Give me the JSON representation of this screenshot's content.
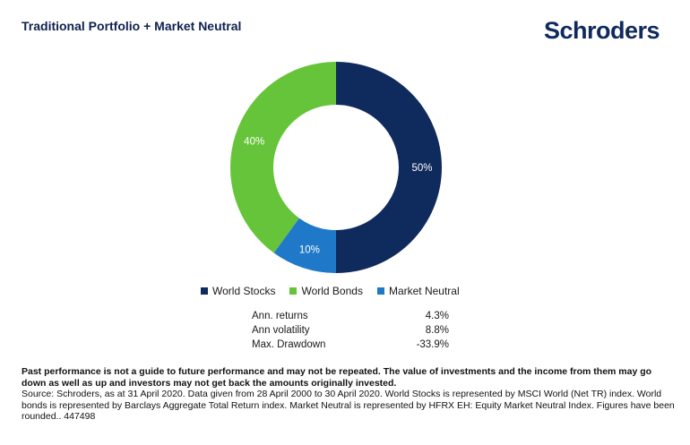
{
  "header": {
    "title": "Traditional Portfolio + Market Neutral",
    "logo_text": "Schroders"
  },
  "chart_data": {
    "type": "pie",
    "donut": true,
    "categories": [
      "World Stocks",
      "Market Neutral",
      "World Bonds"
    ],
    "values": [
      50,
      10,
      40
    ],
    "value_labels": [
      "50%",
      "10%",
      "40%"
    ],
    "colors": [
      "#0f2a5c",
      "#1f78c8",
      "#66c43a"
    ],
    "legend_position": "bottom"
  },
  "legend": [
    {
      "label": "World Stocks",
      "color": "#0f2a5c"
    },
    {
      "label": "World Bonds",
      "color": "#66c43a"
    },
    {
      "label": "Market Neutral",
      "color": "#1f78c8"
    }
  ],
  "stats": [
    {
      "label": "Ann. returns",
      "value": "4.3%"
    },
    {
      "label": "Ann volatility",
      "value": "8.8%"
    },
    {
      "label": "Max. Drawdown",
      "value": "-33.9%"
    }
  ],
  "footer": {
    "disclaimer_bold": "Past performance is not a guide to future performance and may not be repeated. The value of investments and the income from them may go down as well as up and investors may not get back the amounts originally invested.",
    "source": "Source: Schroders, as at 31 April 2020. Data given from 28 April 2000 to 30 April 2020. World Stocks is represented by MSCI World (Net TR) index. World bonds is represented by Barclays Aggregate Total Return index. Market Neutral is represented by HFRX EH: Equity Market Neutral Index. Figures have been rounded.. 447498"
  }
}
